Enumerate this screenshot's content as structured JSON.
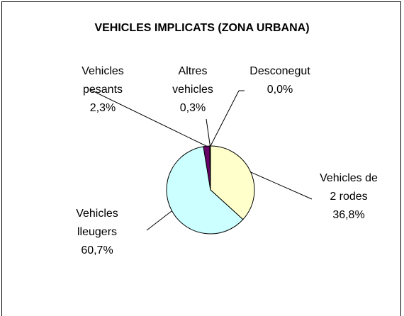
{
  "chart_data": {
    "type": "pie",
    "title": "VEHICLES IMPLICATS (ZONA URBANA)",
    "categories": [
      "Vehicles de 2 rodes",
      "Vehicles lleugers",
      "Vehicles pesants",
      "Altres vehicles",
      "Desconegut"
    ],
    "values": [
      36.8,
      60.7,
      2.3,
      0.3,
      0.0
    ],
    "value_labels": [
      "36,8%",
      "60,7%",
      "2,3%",
      "0,3%",
      "0,0%"
    ],
    "colors": [
      "#FFFFCC",
      "#CCFFFF",
      "#660066",
      "#FF8080",
      "#000080"
    ]
  }
}
